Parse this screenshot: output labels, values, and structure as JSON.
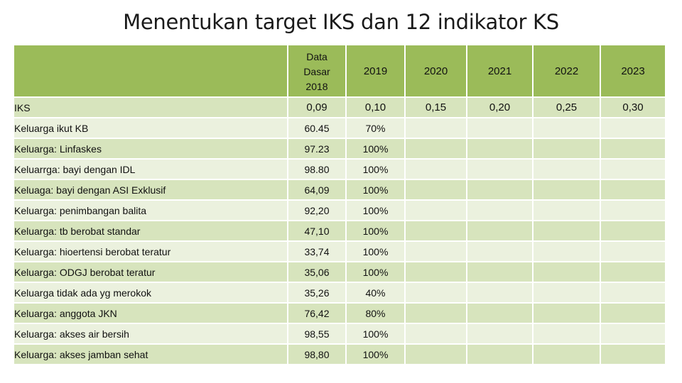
{
  "title": "Menentukan target IKS dan 12 indikator KS",
  "header": {
    "base_year": [
      "Data",
      "Dasar",
      "2018"
    ],
    "years": [
      "2019",
      "2020",
      "2021",
      "2022",
      "2023"
    ]
  },
  "iks": {
    "label": "IKS",
    "base": "0,09",
    "targets": [
      "0,10",
      "0,15",
      "0,20",
      "0,25",
      "0,30"
    ]
  },
  "indicators": [
    {
      "label": "Keluarga ikut KB",
      "base": "60.45",
      "target_2019": "70%"
    },
    {
      "label": "Keluarga: Linfaskes",
      "base": "97.23",
      "target_2019": "100%"
    },
    {
      "label": "Keluarrga: bayi dengan IDL",
      "base": "98.80",
      "target_2019": "100%"
    },
    {
      "label": "Keluaga: bayi dengan ASI Exklusif",
      "base": "64,09",
      "target_2019": "100%"
    },
    {
      "label": "Keluarga: penimbangan balita",
      "base": "92,20",
      "target_2019": "100%"
    },
    {
      "label": "Keluarga: tb berobat standar",
      "base": "47,10",
      "target_2019": "100%"
    },
    {
      "label": "Keluarga: hioertensi berobat teratur",
      "base": "33,74",
      "target_2019": "100%"
    },
    {
      "label": "Keluarga: ODGJ berobat teratur",
      "base": "35,06",
      "target_2019": "100%"
    },
    {
      "label": "Keluarga tidak ada yg merokok",
      "base": "35,26",
      "target_2019": "40%"
    },
    {
      "label": "Keluarga: anggota JKN",
      "base": "76,42",
      "target_2019": "80%"
    },
    {
      "label": "Keluarga: akses air bersih",
      "base": "98,55",
      "target_2019": "100%"
    },
    {
      "label": "Keluarga: akses jamban sehat",
      "base": "98,80",
      "target_2019": "100%"
    }
  ]
}
